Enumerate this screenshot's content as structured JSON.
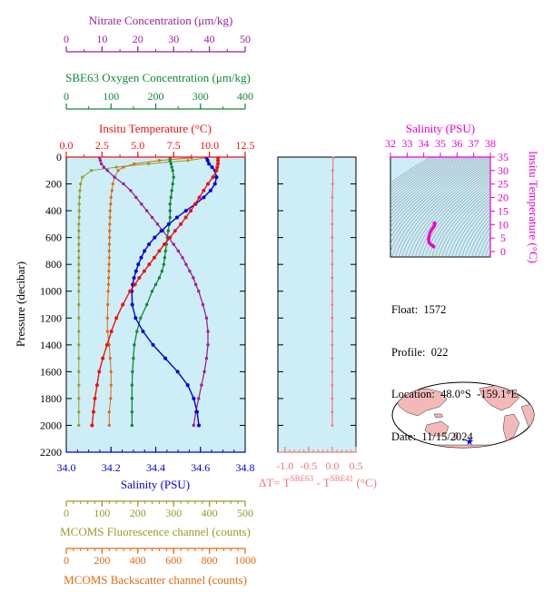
{
  "info": {
    "float_label": "Float:",
    "float": "1572",
    "profile_label": "Profile:",
    "profile": "022",
    "location_label": "Location:",
    "location": "48.0°S  -159.1°E",
    "date_label": "Date:",
    "date": "11/15/2024"
  },
  "colors": {
    "panel_bg": "#cdeef7",
    "temperature": "#ee1111",
    "salinity": "#0000dd",
    "oxygen": "#11883a",
    "nitrate": "#992299",
    "fluorescence": "#9a9a2a",
    "backscatter": "#e06a10",
    "dt": "#f07a7a",
    "ts_magenta": "#ee00cc",
    "land": "#f3b9b9"
  },
  "chart_data": [
    {
      "type": "line",
      "name": "profile",
      "ylabel": "Pressure (decibar)",
      "y_ticks": [
        "0",
        "200",
        "400",
        "600",
        "800",
        "1000",
        "1200",
        "1400",
        "1600",
        "1800",
        "2000",
        "2200"
      ],
      "ylim": [
        2200,
        0
      ],
      "axes": {
        "temperature": {
          "title_main": "Insitu Temperature (",
          "title_unit": "°C",
          "title_end": ")",
          "ticks": [
            "0.0",
            "2.5",
            "5.0",
            "7.5",
            "10.0",
            "12.5"
          ],
          "range": [
            0,
            12.5
          ]
        },
        "salinity": {
          "title": "Salinity (PSU)",
          "ticks": [
            "34.0",
            "34.2",
            "34.4",
            "34.6",
            "34.8"
          ],
          "range": [
            34.0,
            34.8
          ]
        },
        "oxygen": {
          "title": "SBE63 Oxygen Concentration (μm/kg)",
          "ticks": [
            "0",
            "100",
            "200",
            "300",
            "400"
          ],
          "range": [
            0,
            400
          ]
        },
        "nitrate": {
          "title": "Nitrate Concentration (μm/kg)",
          "ticks": [
            "0",
            "10",
            "20",
            "30",
            "40",
            "50"
          ],
          "range": [
            0,
            50
          ]
        },
        "fluorescence": {
          "title": "MCOMS Fluorescence channel (counts)",
          "ticks": [
            "0",
            "100",
            "200",
            "300",
            "400",
            "500"
          ],
          "range": [
            0,
            500
          ]
        },
        "backscatter": {
          "title": "MCOMS Backscatter channel (counts)",
          "ticks": [
            "0",
            "200",
            "400",
            "600",
            "800",
            "1000"
          ],
          "range": [
            0,
            1000
          ]
        }
      },
      "pressure": [
        5,
        25,
        50,
        75,
        100,
        150,
        200,
        250,
        300,
        350,
        400,
        450,
        500,
        550,
        600,
        650,
        700,
        750,
        800,
        850,
        900,
        950,
        1000,
        1100,
        1200,
        1300,
        1400,
        1500,
        1600,
        1700,
        1800,
        1900,
        2000
      ],
      "series": [
        {
          "key": "temperature",
          "values": [
            10.6,
            10.6,
            10.6,
            10.55,
            10.5,
            10.25,
            9.9,
            9.6,
            9.3,
            9.0,
            8.7,
            8.35,
            8.0,
            7.6,
            7.25,
            6.85,
            6.5,
            6.15,
            5.8,
            5.45,
            5.1,
            4.8,
            4.45,
            3.95,
            3.5,
            3.15,
            2.85,
            2.55,
            2.3,
            2.15,
            2.0,
            1.9,
            1.8
          ]
        },
        {
          "key": "salinity",
          "values": [
            34.628,
            34.632,
            34.638,
            34.652,
            34.665,
            34.672,
            34.665,
            34.645,
            34.615,
            34.578,
            34.535,
            34.495,
            34.458,
            34.425,
            34.395,
            34.37,
            34.35,
            34.335,
            34.322,
            34.312,
            34.303,
            34.297,
            34.293,
            34.295,
            34.31,
            34.343,
            34.388,
            34.443,
            34.498,
            34.543,
            34.57,
            34.585,
            34.593
          ]
        },
        {
          "key": "oxygen",
          "values": [
            232,
            232,
            234,
            236,
            238,
            240,
            238,
            236,
            234,
            232,
            232,
            232,
            230,
            228,
            226,
            224,
            222,
            220,
            218,
            214,
            208,
            200,
            192,
            180,
            166,
            158,
            152,
            150,
            148,
            147,
            147,
            147,
            147
          ]
        },
        {
          "key": "nitrate",
          "values": [
            9.3,
            9.5,
            9.8,
            10.5,
            11.5,
            13.5,
            16.0,
            18.0,
            19.5,
            21.0,
            22.5,
            24.0,
            25.5,
            27.0,
            28.5,
            30.0,
            31.3,
            32.5,
            33.5,
            34.5,
            35.5,
            36.2,
            37.0,
            38.2,
            39.2,
            39.6,
            39.6,
            39.2,
            38.6,
            37.8,
            37.0,
            36.2,
            35.6
          ]
        },
        {
          "key": "fluorescence",
          "values": [
            390,
            340,
            230,
            140,
            70,
            45,
            40,
            38,
            37,
            36,
            36,
            36,
            35,
            35,
            35,
            35,
            35,
            35,
            35,
            35,
            35,
            35,
            35,
            35,
            35,
            35,
            35,
            35,
            35,
            35,
            35,
            35,
            35
          ]
        },
        {
          "key": "backscatter",
          "values": [
            700,
            520,
            380,
            320,
            290,
            270,
            260,
            255,
            250,
            248,
            245,
            244,
            243,
            242,
            242,
            241,
            240,
            240,
            239,
            238,
            237,
            236,
            234,
            232,
            230,
            230,
            240,
            245,
            250,
            250,
            248,
            240,
            240
          ]
        }
      ]
    },
    {
      "type": "line",
      "name": "temperature-difference",
      "xlabel_prefix": "ΔT= T",
      "xlabel_sup1": "SBE63",
      "xlabel_mid": " - T",
      "xlabel_sup2": "SBE41",
      "xlabel_suffix": " (°C)",
      "x_ticks": [
        "-1.0",
        "-0.5",
        "0.0",
        "0.5"
      ],
      "xlim": [
        -1.15,
        0.5
      ],
      "pressure": [
        5,
        100,
        200,
        300,
        400,
        500,
        600,
        700,
        800,
        900,
        1000,
        1100,
        1200,
        1300,
        1400,
        1500,
        1600,
        1700,
        1800,
        1900,
        2000
      ],
      "values": [
        0.02,
        0.01,
        0.01,
        0.0,
        0.0,
        0.0,
        0.0,
        0.0,
        0.0,
        0.0,
        0.0,
        0.0,
        0.0,
        0.0,
        0.0,
        0.0,
        0.0,
        0.0,
        0.0,
        0.0,
        0.0
      ]
    },
    {
      "type": "scatter",
      "name": "ts-diagram",
      "xlabel": "Salinity (PSU)",
      "ylabel": "Insitu Temperature (°C)",
      "x_ticks": [
        "32",
        "33",
        "34",
        "35",
        "36",
        "37",
        "38"
      ],
      "xlim": [
        32,
        38
      ],
      "y_ticks": [
        "0",
        "5",
        "10",
        "15",
        "20",
        "25",
        "30",
        "35"
      ],
      "ylim": [
        -2,
        35
      ],
      "points": [
        [
          34.63,
          10.6
        ],
        [
          34.66,
          10.5
        ],
        [
          34.67,
          10.3
        ],
        [
          34.64,
          9.6
        ],
        [
          34.58,
          9.0
        ],
        [
          34.5,
          8.3
        ],
        [
          34.43,
          7.6
        ],
        [
          34.37,
          6.8
        ],
        [
          34.32,
          5.8
        ],
        [
          34.3,
          4.8
        ],
        [
          34.29,
          4.4
        ],
        [
          34.31,
          3.5
        ],
        [
          34.39,
          2.8
        ],
        [
          34.5,
          2.3
        ],
        [
          34.57,
          2.0
        ],
        [
          34.59,
          1.8
        ]
      ]
    }
  ]
}
